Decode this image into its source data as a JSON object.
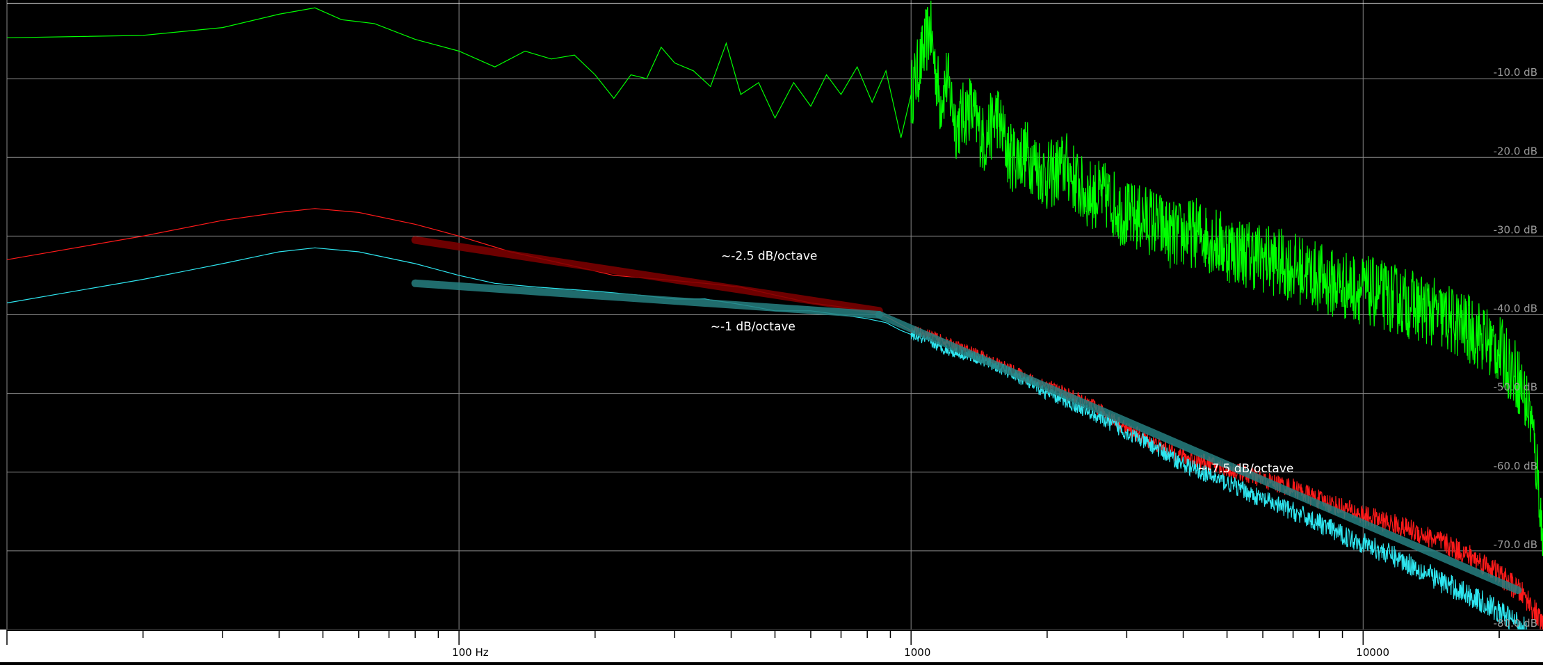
{
  "chart_data": {
    "type": "line",
    "x_scale": "log",
    "xlim": [
      10,
      25000
    ],
    "ylim": [
      -80,
      0
    ],
    "grid": true,
    "colors": {
      "background": "#000000",
      "grid": "#8a8a8a",
      "axis_panel": "#ffffff",
      "tick_label": "#9a9a9a",
      "annotation_text": "#ffffff",
      "green_series": "#00ff00",
      "red_series": "#ff1a1a",
      "cyan_series": "#2ee6f0",
      "red_fit": "#800000",
      "cyan_fit": "#267f80"
    },
    "x_ticks": [
      {
        "value": 100,
        "label": "100 Hz"
      },
      {
        "value": 1000,
        "label": "1000"
      },
      {
        "value": 10000,
        "label": "10000"
      }
    ],
    "y_ticks": [
      {
        "value": -10,
        "label": "-10.0 dB"
      },
      {
        "value": -20,
        "label": "-20.0 dB"
      },
      {
        "value": -30,
        "label": "-30.0 dB"
      },
      {
        "value": -40,
        "label": "-40.0 dB"
      },
      {
        "value": -50,
        "label": "-50.0 dB"
      },
      {
        "value": -60,
        "label": "-60.0 dB"
      },
      {
        "value": -70,
        "label": "-70.0 dB"
      },
      {
        "value": -80,
        "label": "-80.0 dB"
      }
    ],
    "series": [
      {
        "key": "green",
        "color": "#00ff00",
        "points": [
          [
            10,
            -4.8
          ],
          [
            20,
            -4.5
          ],
          [
            30,
            -3.5
          ],
          [
            40,
            -1.8
          ],
          [
            48,
            -1.0
          ],
          [
            55,
            -2.5
          ],
          [
            65,
            -3.0
          ],
          [
            80,
            -5.0
          ],
          [
            100,
            -6.5
          ],
          [
            120,
            -8.5
          ],
          [
            140,
            -6.5
          ],
          [
            160,
            -7.5
          ],
          [
            180,
            -7.0
          ],
          [
            200,
            -9.5
          ],
          [
            220,
            -12.5
          ],
          [
            240,
            -9.5
          ],
          [
            260,
            -10.0
          ],
          [
            280,
            -6.0
          ],
          [
            300,
            -8.0
          ],
          [
            330,
            -9.0
          ],
          [
            360,
            -11.0
          ],
          [
            390,
            -5.5
          ],
          [
            420,
            -12.0
          ],
          [
            460,
            -10.5
          ],
          [
            500,
            -15.0
          ],
          [
            550,
            -10.5
          ],
          [
            600,
            -13.5
          ],
          [
            650,
            -9.5
          ],
          [
            700,
            -12.0
          ],
          [
            760,
            -8.5
          ],
          [
            820,
            -13.0
          ],
          [
            880,
            -9.0
          ],
          [
            950,
            -17.5
          ],
          [
            1000,
            -12.0
          ],
          [
            1050,
            -8.0
          ],
          [
            1100,
            -3.5
          ],
          [
            1160,
            -13.0
          ],
          [
            1200,
            -10.0
          ],
          [
            1260,
            -16.0
          ],
          [
            1350,
            -13.5
          ],
          [
            1450,
            -18.0
          ],
          [
            1550,
            -14.5
          ],
          [
            1650,
            -20.0
          ],
          [
            1800,
            -19.5
          ],
          [
            2000,
            -22.5
          ],
          [
            2200,
            -21.0
          ],
          [
            2400,
            -24.5
          ],
          [
            2700,
            -25.0
          ],
          [
            3000,
            -27.5
          ],
          [
            3400,
            -28.0
          ],
          [
            3800,
            -30.0
          ],
          [
            4300,
            -29.5
          ],
          [
            5000,
            -31.5
          ],
          [
            5800,
            -32.5
          ],
          [
            6600,
            -33.5
          ],
          [
            7500,
            -34.5
          ],
          [
            8500,
            -36.0
          ],
          [
            9500,
            -36.5
          ],
          [
            11000,
            -37.5
          ],
          [
            12500,
            -38.5
          ],
          [
            14000,
            -39.5
          ],
          [
            16000,
            -41.0
          ],
          [
            18000,
            -42.5
          ],
          [
            20000,
            -44.5
          ],
          [
            22000,
            -48.0
          ],
          [
            23500,
            -53.0
          ],
          [
            24500,
            -62.0
          ],
          [
            25000,
            -70.0
          ]
        ]
      },
      {
        "key": "red",
        "color": "#ff1a1a",
        "points": [
          [
            10,
            -33.0
          ],
          [
            20,
            -30.0
          ],
          [
            30,
            -28.0
          ],
          [
            40,
            -27.0
          ],
          [
            48,
            -26.5
          ],
          [
            60,
            -27.0
          ],
          [
            80,
            -28.5
          ],
          [
            100,
            -30.0
          ],
          [
            130,
            -32.0
          ],
          [
            170,
            -33.5
          ],
          [
            220,
            -35.0
          ],
          [
            280,
            -35.5
          ],
          [
            350,
            -36.0
          ],
          [
            420,
            -36.5
          ],
          [
            500,
            -37.5
          ],
          [
            600,
            -38.5
          ],
          [
            700,
            -39.0
          ],
          [
            800,
            -39.5
          ],
          [
            860,
            -40.0
          ],
          [
            900,
            -40.5
          ],
          [
            1000,
            -42.0
          ],
          [
            1100,
            -42.5
          ],
          [
            1200,
            -43.5
          ],
          [
            1400,
            -45.0
          ],
          [
            1600,
            -46.5
          ],
          [
            1800,
            -48.0
          ],
          [
            2000,
            -49.0
          ],
          [
            2300,
            -50.5
          ],
          [
            2600,
            -52.0
          ],
          [
            3000,
            -54.5
          ],
          [
            3500,
            -56.5
          ],
          [
            4000,
            -58.0
          ],
          [
            4600,
            -59.0
          ],
          [
            5300,
            -60.0
          ],
          [
            6000,
            -61.0
          ],
          [
            7000,
            -62.0
          ],
          [
            8000,
            -63.5
          ],
          [
            9000,
            -64.5
          ],
          [
            10000,
            -65.5
          ],
          [
            11500,
            -66.5
          ],
          [
            13000,
            -67.5
          ],
          [
            15000,
            -69.0
          ],
          [
            17000,
            -70.5
          ],
          [
            19000,
            -72.0
          ],
          [
            21000,
            -74.0
          ],
          [
            23000,
            -76.0
          ],
          [
            25000,
            -79.5
          ]
        ]
      },
      {
        "key": "cyan",
        "color": "#2ee6f0",
        "points": [
          [
            10,
            -38.5
          ],
          [
            20,
            -35.5
          ],
          [
            30,
            -33.5
          ],
          [
            40,
            -32.0
          ],
          [
            48,
            -31.5
          ],
          [
            60,
            -32.0
          ],
          [
            80,
            -33.5
          ],
          [
            100,
            -35.0
          ],
          [
            120,
            -36.0
          ],
          [
            150,
            -36.5
          ],
          [
            200,
            -37.0
          ],
          [
            250,
            -37.5
          ],
          [
            300,
            -38.0
          ],
          [
            350,
            -38.0
          ],
          [
            400,
            -38.5
          ],
          [
            450,
            -39.0
          ],
          [
            500,
            -39.5
          ],
          [
            600,
            -39.5
          ],
          [
            700,
            -40.0
          ],
          [
            800,
            -40.5
          ],
          [
            880,
            -41.0
          ],
          [
            950,
            -42.0
          ],
          [
            1000,
            -42.5
          ],
          [
            1100,
            -43.5
          ],
          [
            1200,
            -44.5
          ],
          [
            1400,
            -45.5
          ],
          [
            1600,
            -47.0
          ],
          [
            1800,
            -48.5
          ],
          [
            2000,
            -50.0
          ],
          [
            2300,
            -51.5
          ],
          [
            2600,
            -53.0
          ],
          [
            3000,
            -55.0
          ],
          [
            3500,
            -57.0
          ],
          [
            4000,
            -59.0
          ],
          [
            4600,
            -60.5
          ],
          [
            5300,
            -62.0
          ],
          [
            6000,
            -63.5
          ],
          [
            7000,
            -65.0
          ],
          [
            8000,
            -66.5
          ],
          [
            9000,
            -68.0
          ],
          [
            10000,
            -69.0
          ],
          [
            11500,
            -70.5
          ],
          [
            13000,
            -72.0
          ],
          [
            15000,
            -74.0
          ],
          [
            17000,
            -75.5
          ],
          [
            19000,
            -77.0
          ],
          [
            21000,
            -78.5
          ],
          [
            23000,
            -80.0
          ]
        ]
      }
    ],
    "fit_lines": [
      {
        "key": "red_fit",
        "color": "#800000",
        "points": [
          [
            80,
            -30.5
          ],
          [
            850,
            -39.5
          ]
        ]
      },
      {
        "key": "cyan_fit_low",
        "color": "#267f80",
        "points": [
          [
            80,
            -36.0
          ],
          [
            850,
            -40.0
          ]
        ]
      },
      {
        "key": "cyan_fit_high",
        "color": "#267f80",
        "points": [
          [
            850,
            -40.0
          ],
          [
            22000,
            -75.0
          ]
        ]
      }
    ],
    "annotations": [
      {
        "text": "~-2.5 dB/octave",
        "x": 380,
        "y": -33.0
      },
      {
        "text": "~-1 dB/octave",
        "x": 360,
        "y": -42.0
      },
      {
        "text": "~-7.5 dB/octave",
        "x": 4300,
        "y": -60.0
      }
    ]
  }
}
